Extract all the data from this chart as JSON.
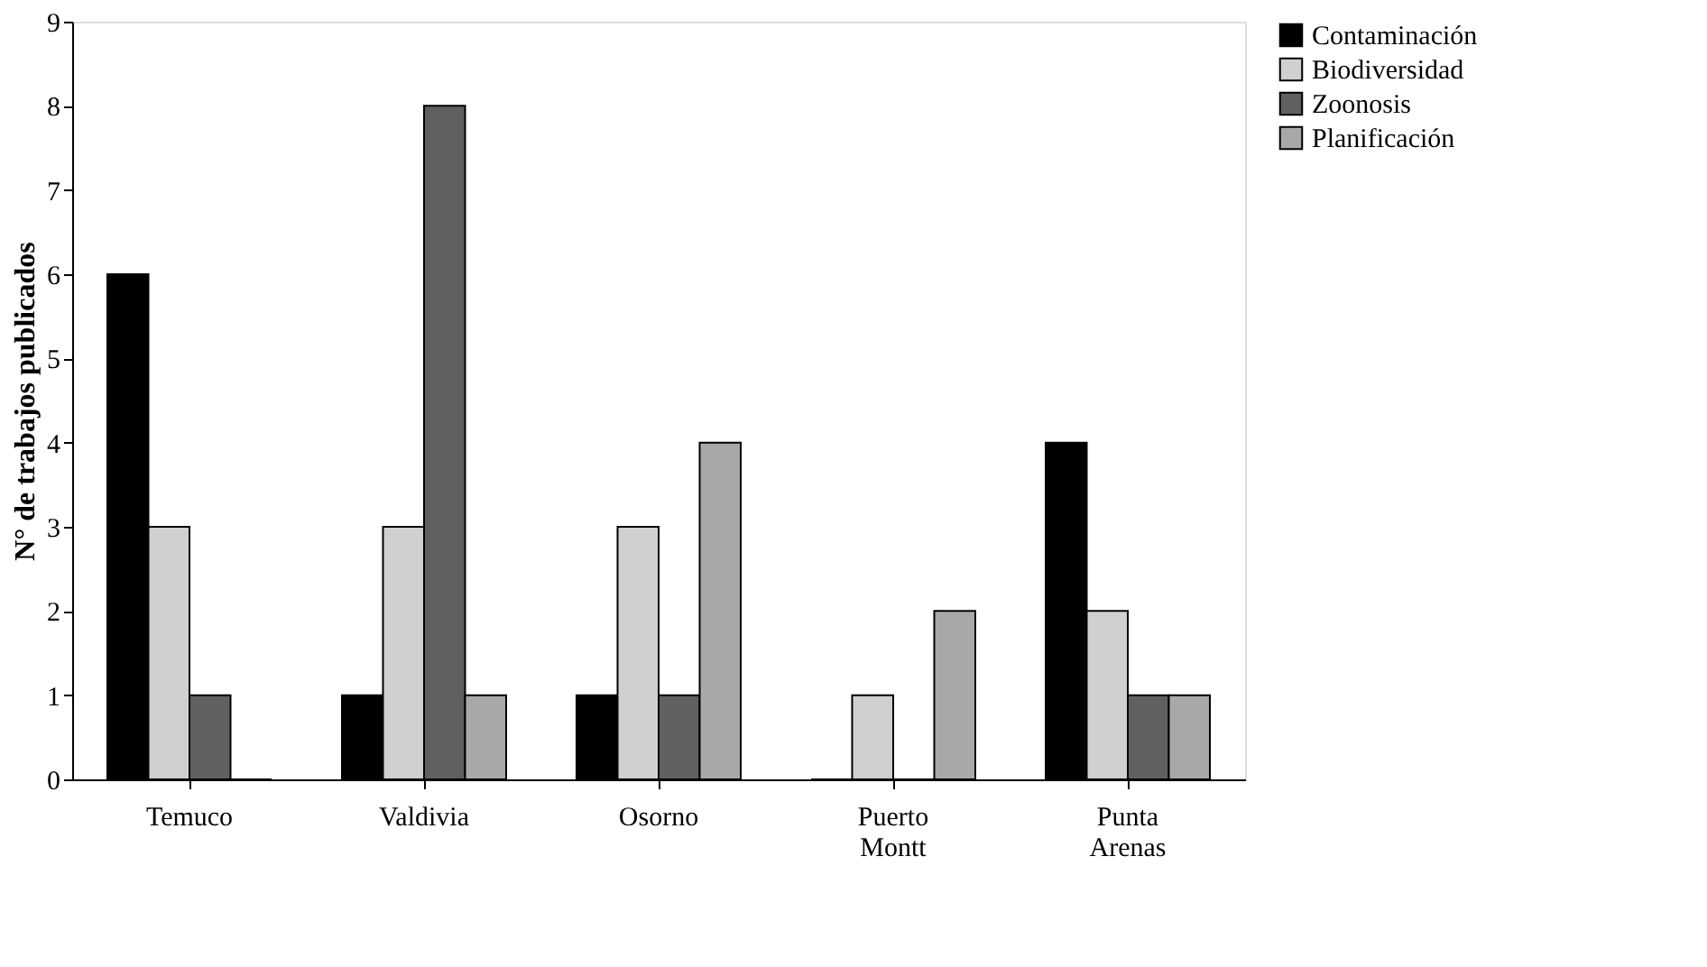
{
  "chart_data": {
    "type": "bar",
    "ylabel": "N° de trabajos publicados",
    "categories": [
      "Temuco",
      "Valdivia",
      "Osorno",
      "Puerto Montt",
      "Punta Arenas"
    ],
    "series": [
      {
        "name": "Contaminación",
        "color": "#000000",
        "values": [
          6,
          1,
          1,
          0,
          4
        ]
      },
      {
        "name": "Biodiversidad",
        "color": "#d0d0d0",
        "values": [
          3,
          3,
          3,
          1,
          2
        ]
      },
      {
        "name": "Zoonosis",
        "color": "#606060",
        "values": [
          1,
          8,
          1,
          0,
          1
        ]
      },
      {
        "name": "Planificación",
        "color": "#a8a8a8",
        "values": [
          0,
          1,
          4,
          2,
          1
        ]
      }
    ],
    "ylim": [
      0,
      9
    ],
    "yticks": [
      0,
      1,
      2,
      3,
      4,
      5,
      6,
      7,
      8,
      9
    ],
    "grid": false,
    "legend": "right"
  }
}
